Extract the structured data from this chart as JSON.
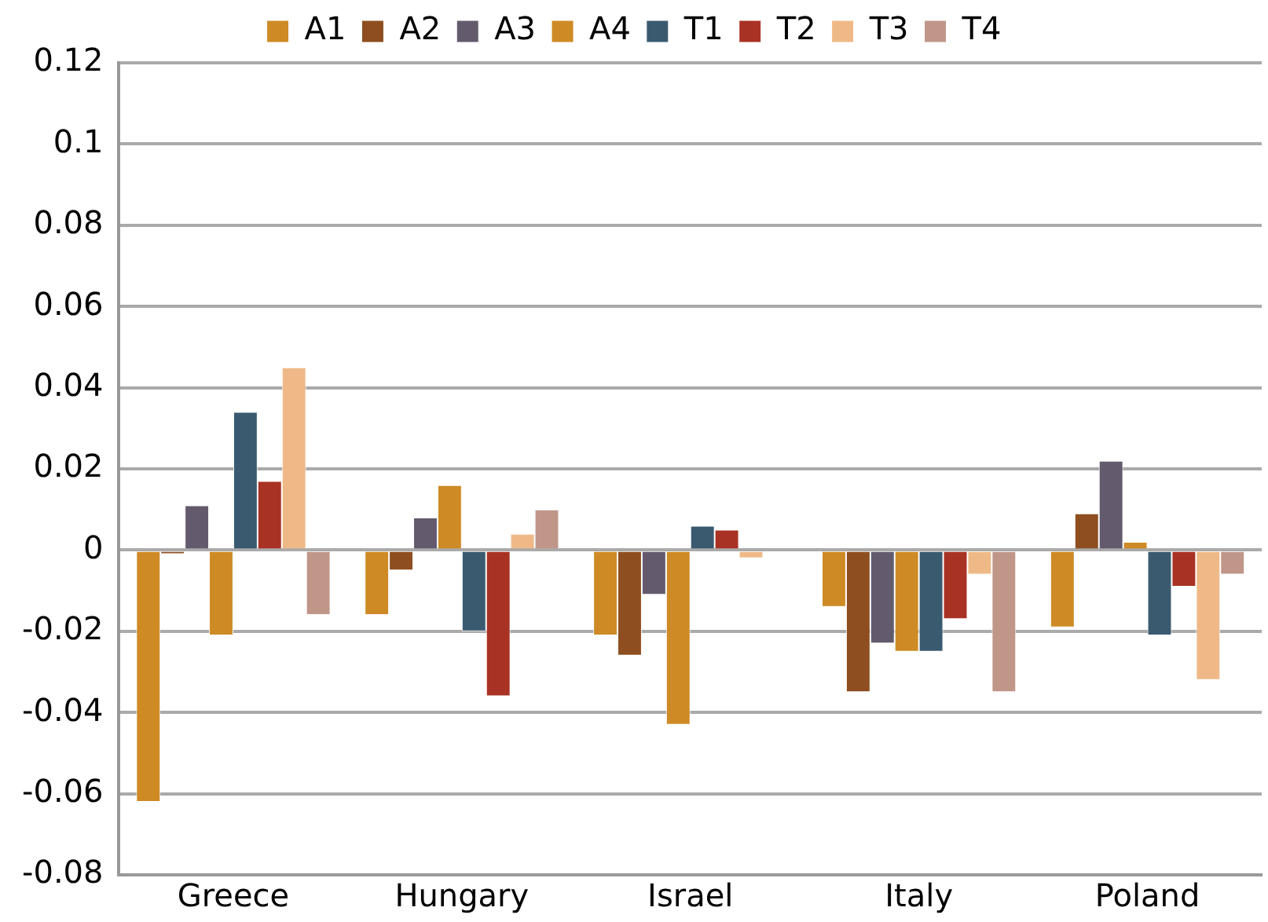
{
  "chart_data": {
    "type": "bar",
    "categories": [
      "Greece",
      "Hungary",
      "Israel",
      "Italy",
      "Poland"
    ],
    "series": [
      {
        "name": "A1",
        "color": "#ce8a25",
        "values": [
          -0.062,
          -0.016,
          -0.021,
          -0.014,
          -0.019
        ]
      },
      {
        "name": "A2",
        "color": "#8e4e1f",
        "values": [
          -0.001,
          -0.005,
          -0.026,
          -0.035,
          0.009
        ]
      },
      {
        "name": "A3",
        "color": "#645a6e",
        "values": [
          0.011,
          0.008,
          -0.011,
          -0.023,
          0.022
        ]
      },
      {
        "name": "A4",
        "color": "#ce8a25",
        "values": [
          -0.021,
          0.016,
          -0.043,
          -0.025,
          0.002
        ]
      },
      {
        "name": "T1",
        "color": "#3a5a70",
        "values": [
          0.034,
          -0.02,
          0.006,
          -0.025,
          -0.021
        ]
      },
      {
        "name": "T2",
        "color": "#a83224",
        "values": [
          0.017,
          -0.036,
          0.005,
          -0.017,
          -0.009
        ]
      },
      {
        "name": "T3",
        "color": "#efb987",
        "values": [
          0.045,
          0.004,
          -0.002,
          -0.006,
          -0.032
        ]
      },
      {
        "name": "T4",
        "color": "#c09689",
        "values": [
          -0.016,
          0.01,
          0,
          -0.035,
          -0.006
        ]
      }
    ],
    "ylim": [
      -0.08,
      0.12
    ],
    "yticks": [
      -0.08,
      -0.06,
      -0.04,
      -0.02,
      0,
      0.02,
      0.04,
      0.06,
      0.08,
      0.1,
      0.12
    ],
    "grid": "y",
    "legend": "top"
  }
}
